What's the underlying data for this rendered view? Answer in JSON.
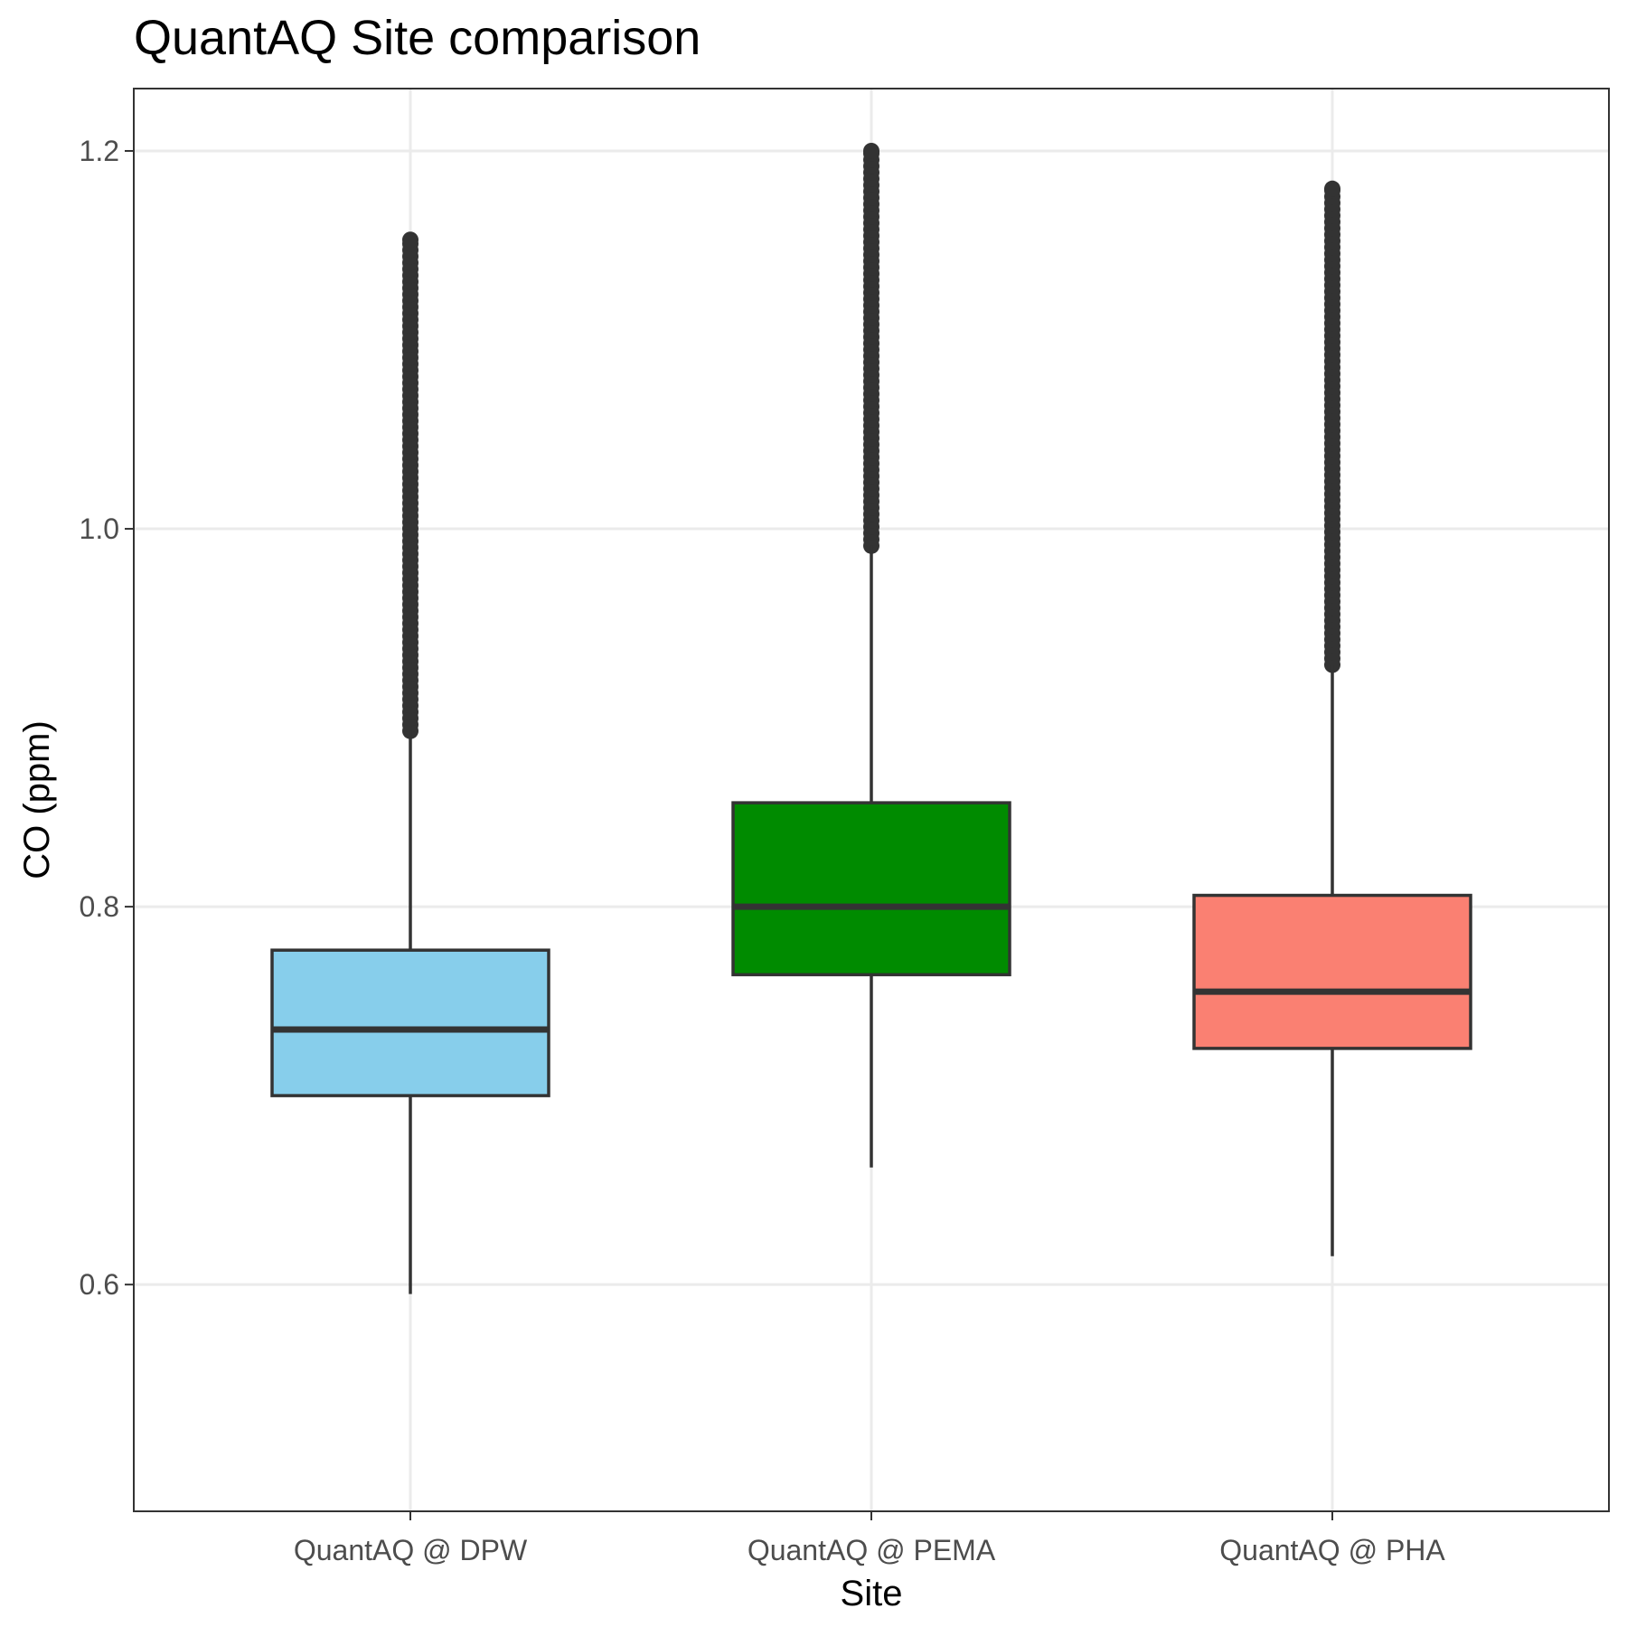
{
  "chart_data": {
    "type": "boxplot",
    "title": "QuantAQ Site comparison",
    "xlabel": "Site",
    "ylabel": "CO (ppm)",
    "ylim": [
      0.48,
      1.233
    ],
    "yticks": [
      0.6,
      0.8,
      1.0,
      1.2
    ],
    "ytick_labels": [
      "0.6",
      "0.8",
      "1.0",
      "1.2"
    ],
    "grid": true,
    "legend": "none",
    "categories": [
      "QuantAQ @ DPW",
      "QuantAQ @ PEMA",
      "QuantAQ @ PHA"
    ],
    "boxes": [
      {
        "category": "QuantAQ @ DPW",
        "color": "#87ceeb",
        "whisker_low": 0.595,
        "q1": 0.7,
        "median": 0.735,
        "q3": 0.777,
        "whisker_high": 0.893,
        "outliers_range": [
          0.893,
          1.153
        ]
      },
      {
        "category": "QuantAQ @ PEMA",
        "color": "#008b00",
        "whisker_low": 0.662,
        "q1": 0.764,
        "median": 0.8,
        "q3": 0.855,
        "whisker_high": 0.991,
        "outliers_range": [
          0.991,
          1.2
        ]
      },
      {
        "category": "QuantAQ @ PHA",
        "color": "#fa8072",
        "whisker_low": 0.615,
        "q1": 0.725,
        "median": 0.755,
        "q3": 0.806,
        "whisker_high": 0.928,
        "outliers_range": [
          0.928,
          1.18
        ]
      }
    ]
  }
}
